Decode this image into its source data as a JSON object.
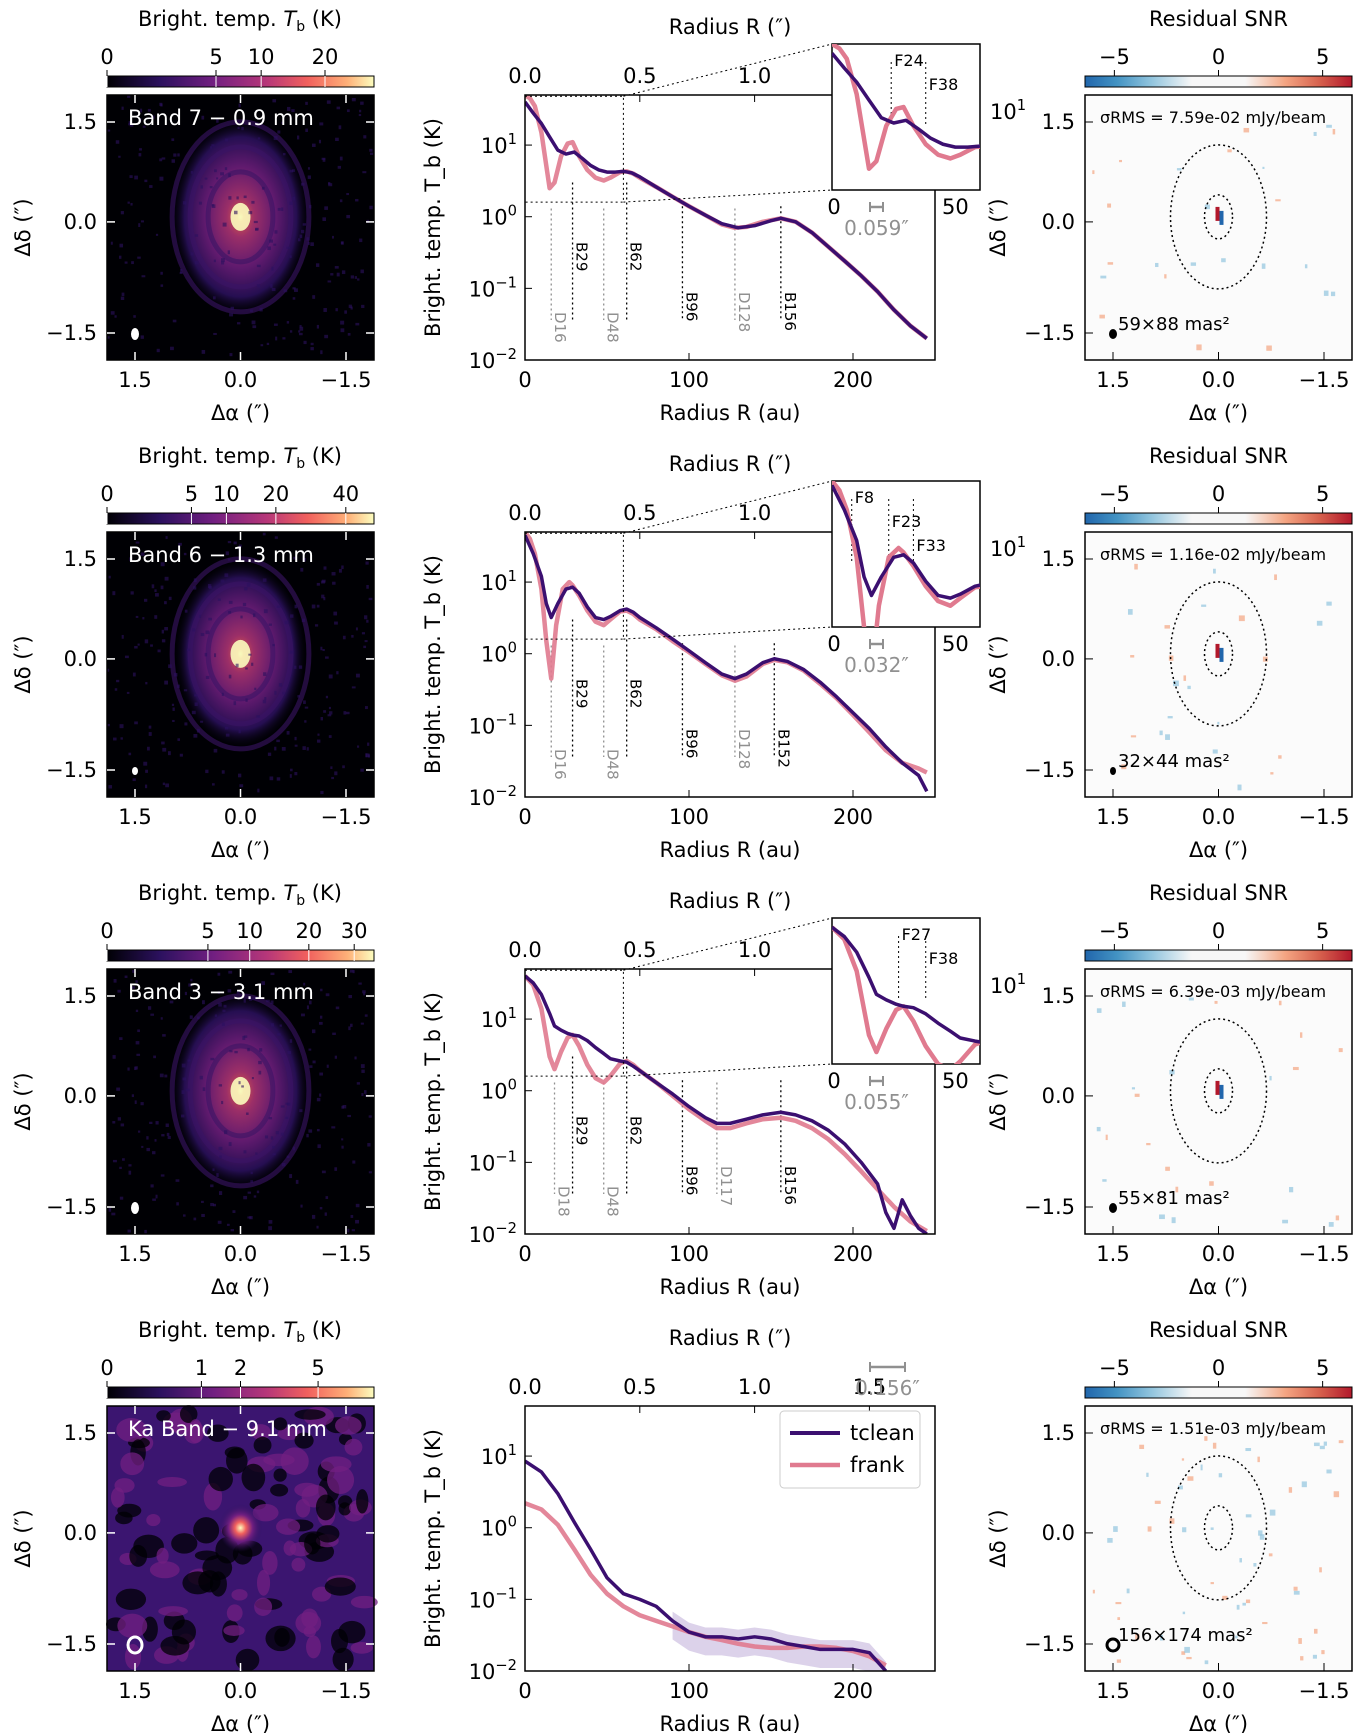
{
  "legend": {
    "tclean": "tclean",
    "frank": "frank"
  },
  "colors": {
    "tclean": "#3b0f70",
    "frank": "#e07a8f",
    "band_fill": "#b9a6d6",
    "gap_line": "#909090"
  },
  "colorbar_labels": {
    "brightness": "Bright. temp. $T_b$ (K)",
    "residual": "Residual SNR",
    "residual_ticks": [
      "−5",
      "0",
      "5"
    ]
  },
  "axes_text": {
    "dalpha": "Δα (″)",
    "ddelta": "Δδ (″)",
    "radius_au": "Radius R (au)",
    "radius_arcsec": "Radius R (″)",
    "tb": "Bright. temp. T_b (K)",
    "offset_ticks": [
      "1.5",
      "0.0",
      "−1.5"
    ],
    "au_ticks": [
      "0",
      "100",
      "200"
    ],
    "arcsec_ticks": [
      "0.0",
      "0.5",
      "1.0",
      "1.5"
    ],
    "log_ticks": [
      "10^-2",
      "10^-1",
      "10^0",
      "10^1"
    ],
    "inset_x_ticks": [
      "0",
      "50"
    ],
    "inset_y_tick": "10^1"
  },
  "panels": [
    {
      "band_label": "Band 7 − 0.9 mm",
      "colorbar_ticks": [
        "0",
        "5",
        "10",
        "20"
      ],
      "colorbar_tick_values": [
        0,
        5,
        10,
        20
      ],
      "colorbar_max": 30,
      "beam_label": "59×88 mas²",
      "sigma_rms": "σRMS = 7.59e-02 mJy/beam",
      "scale_bar": "0.059″",
      "features": [
        {
          "label": "D16",
          "r": 16,
          "type": "gap"
        },
        {
          "label": "B29",
          "r": 29,
          "type": "ring"
        },
        {
          "label": "D48",
          "r": 48,
          "type": "gap"
        },
        {
          "label": "B62",
          "r": 62,
          "type": "ring"
        },
        {
          "label": "B96",
          "r": 96,
          "type": "ring"
        },
        {
          "label": "D128",
          "r": 128,
          "type": "gap"
        },
        {
          "label": "B156",
          "r": 156,
          "type": "ring"
        }
      ],
      "inset_features": [
        {
          "label": "F24",
          "r": 24
        },
        {
          "label": "F38",
          "r": 38
        }
      ],
      "inset": true
    },
    {
      "band_label": "Band 6 − 1.3 mm",
      "colorbar_ticks": [
        "0",
        "5",
        "10",
        "20",
        "40"
      ],
      "colorbar_tick_values": [
        0,
        5,
        10,
        20,
        40
      ],
      "colorbar_max": 50,
      "beam_label": "32×44 mas²",
      "sigma_rms": "σRMS = 1.16e-02 mJy/beam",
      "scale_bar": "0.032″",
      "features": [
        {
          "label": "D16",
          "r": 16,
          "type": "gap"
        },
        {
          "label": "B29",
          "r": 29,
          "type": "ring"
        },
        {
          "label": "D48",
          "r": 48,
          "type": "gap"
        },
        {
          "label": "B62",
          "r": 62,
          "type": "ring"
        },
        {
          "label": "B96",
          "r": 96,
          "type": "ring"
        },
        {
          "label": "D128",
          "r": 128,
          "type": "gap"
        },
        {
          "label": "B152",
          "r": 152,
          "type": "ring"
        }
      ],
      "inset_features": [
        {
          "label": "F8",
          "r": 8
        },
        {
          "label": "F23",
          "r": 23
        },
        {
          "label": "F33",
          "r": 33
        }
      ],
      "inset": true
    },
    {
      "band_label": "Band 3 − 3.1 mm",
      "colorbar_ticks": [
        "0",
        "5",
        "10",
        "20",
        "30"
      ],
      "colorbar_tick_values": [
        0,
        5,
        10,
        20,
        30
      ],
      "colorbar_max": 35,
      "beam_label": "55×81 mas²",
      "sigma_rms": "σRMS = 6.39e-03 mJy/beam",
      "scale_bar": "0.055″",
      "features": [
        {
          "label": "D18",
          "r": 18,
          "type": "gap"
        },
        {
          "label": "B29",
          "r": 29,
          "type": "ring"
        },
        {
          "label": "D48",
          "r": 48,
          "type": "gap"
        },
        {
          "label": "B62",
          "r": 62,
          "type": "ring"
        },
        {
          "label": "B96",
          "r": 96,
          "type": "ring"
        },
        {
          "label": "D117",
          "r": 117,
          "type": "gap"
        },
        {
          "label": "B156",
          "r": 156,
          "type": "ring"
        }
      ],
      "inset_features": [
        {
          "label": "F27",
          "r": 27
        },
        {
          "label": "F38",
          "r": 38
        }
      ],
      "inset": true
    },
    {
      "band_label": "Ka Band − 9.1 mm",
      "colorbar_ticks": [
        "0",
        "1",
        "2",
        "5"
      ],
      "colorbar_tick_values": [
        0,
        1,
        2,
        5
      ],
      "colorbar_max": 8,
      "beam_label": "156×174 mas²",
      "sigma_rms": "σRMS = 1.51e-03 mJy/beam",
      "scale_bar": "0.156″",
      "features": [],
      "inset_features": [],
      "inset": false
    }
  ],
  "chart_data": {
    "type": "line",
    "x_axis": "Radius R (au)",
    "x_top_axis": "Radius R (″)",
    "y_axis": "Bright. temp. T_b (K)",
    "xlim": [
      0,
      250
    ],
    "ylim": [
      0.01,
      50
    ],
    "yscale": "log",
    "series_by_panel": [
      {
        "tclean": {
          "r": [
            0,
            5,
            10,
            15,
            20,
            25,
            30,
            35,
            40,
            45,
            50,
            55,
            60,
            65,
            70,
            80,
            90,
            100,
            110,
            120,
            130,
            140,
            150,
            156,
            165,
            175,
            185,
            195,
            205,
            215,
            225,
            235,
            245
          ],
          "tb": [
            40,
            28,
            20,
            13,
            8.5,
            7.5,
            8,
            6.5,
            5.2,
            4.5,
            4.2,
            4.2,
            4.3,
            4.1,
            3.6,
            2.6,
            1.9,
            1.4,
            1.05,
            0.8,
            0.7,
            0.75,
            0.88,
            0.95,
            0.85,
            0.6,
            0.38,
            0.24,
            0.15,
            0.09,
            0.05,
            0.03,
            0.02
          ]
        },
        "frank": {
          "r": [
            0,
            3,
            6,
            10,
            15,
            18,
            22,
            26,
            29,
            33,
            38,
            43,
            48,
            52,
            58,
            62,
            66,
            70,
            80,
            90,
            100,
            110,
            120,
            128,
            135,
            145,
            156,
            165,
            175,
            185,
            195,
            205,
            215,
            225,
            235,
            245
          ],
          "tb": [
            50,
            45,
            35,
            15,
            2.5,
            3,
            7,
            10.5,
            11,
            7,
            4.5,
            3.5,
            3.2,
            3.5,
            4.2,
            4.3,
            4,
            3.5,
            2.6,
            1.9,
            1.4,
            1.05,
            0.78,
            0.7,
            0.72,
            0.85,
            0.95,
            0.85,
            0.6,
            0.38,
            0.24,
            0.15,
            0.09,
            0.05,
            0.03,
            0.02
          ]
        }
      },
      {
        "tclean": {
          "r": [
            0,
            5,
            10,
            13,
            16,
            20,
            25,
            29,
            33,
            38,
            43,
            48,
            52,
            58,
            62,
            66,
            70,
            80,
            90,
            100,
            110,
            120,
            128,
            135,
            145,
            152,
            160,
            170,
            180,
            190,
            200,
            210,
            220,
            230,
            240,
            245
          ],
          "tb": [
            45,
            25,
            12,
            5,
            3.2,
            5,
            8,
            8.5,
            7,
            4.5,
            3.2,
            3,
            3.3,
            4,
            4.2,
            3.8,
            3.2,
            2.3,
            1.6,
            1.1,
            0.75,
            0.52,
            0.45,
            0.52,
            0.75,
            0.85,
            0.78,
            0.6,
            0.4,
            0.25,
            0.15,
            0.09,
            0.05,
            0.03,
            0.02,
            0.012
          ]
        },
        "frank": {
          "r": [
            0,
            3,
            6,
            10,
            13,
            16,
            19,
            23,
            27,
            29,
            33,
            38,
            43,
            48,
            52,
            58,
            62,
            66,
            70,
            80,
            90,
            100,
            110,
            120,
            128,
            135,
            145,
            152,
            160,
            170,
            180,
            190,
            200,
            210,
            220,
            230,
            240,
            245
          ],
          "tb": [
            50,
            40,
            25,
            8,
            1.5,
            0.45,
            2.5,
            8,
            10,
            9,
            6.5,
            4,
            2.8,
            2.5,
            3,
            3.9,
            4,
            3.6,
            3,
            2.2,
            1.5,
            1.05,
            0.72,
            0.5,
            0.42,
            0.48,
            0.72,
            0.82,
            0.76,
            0.58,
            0.38,
            0.24,
            0.14,
            0.08,
            0.045,
            0.03,
            0.025,
            0.022
          ]
        }
      },
      {
        "tclean": {
          "r": [
            0,
            5,
            10,
            15,
            18,
            22,
            26,
            29,
            33,
            38,
            43,
            48,
            52,
            58,
            62,
            66,
            70,
            80,
            90,
            100,
            110,
            117,
            125,
            135,
            145,
            156,
            165,
            175,
            185,
            195,
            205,
            215,
            220,
            225,
            230,
            235,
            240,
            245
          ],
          "tb": [
            40,
            32,
            22,
            12,
            8,
            7,
            6.3,
            6,
            5.8,
            5,
            4,
            3.3,
            2.8,
            2.6,
            2.5,
            2.2,
            1.9,
            1.3,
            0.9,
            0.6,
            0.42,
            0.35,
            0.35,
            0.4,
            0.46,
            0.5,
            0.46,
            0.38,
            0.28,
            0.18,
            0.1,
            0.05,
            0.02,
            0.012,
            0.03,
            0.018,
            0.012,
            0.01
          ]
        },
        "frank": {
          "r": [
            0,
            5,
            10,
            15,
            18,
            22,
            26,
            29,
            33,
            38,
            43,
            48,
            52,
            58,
            62,
            66,
            70,
            80,
            90,
            100,
            110,
            117,
            125,
            135,
            145,
            156,
            165,
            175,
            185,
            195,
            205,
            215,
            225,
            235,
            245
          ],
          "tb": [
            40,
            30,
            14,
            3,
            2,
            3.5,
            5.5,
            6,
            4.2,
            2.3,
            1.5,
            1.3,
            1.6,
            2.4,
            2.6,
            2.3,
            1.9,
            1.3,
            0.85,
            0.55,
            0.38,
            0.3,
            0.3,
            0.35,
            0.4,
            0.42,
            0.38,
            0.3,
            0.21,
            0.13,
            0.075,
            0.042,
            0.024,
            0.015,
            0.011
          ]
        }
      },
      {
        "tclean": {
          "r": [
            0,
            10,
            20,
            30,
            40,
            50,
            60,
            70,
            80,
            90,
            100,
            110,
            120,
            130,
            140,
            150,
            160,
            170,
            180,
            190,
            200,
            210,
            220
          ],
          "tb": [
            8.5,
            6,
            3,
            1.2,
            0.5,
            0.2,
            0.12,
            0.1,
            0.08,
            0.05,
            0.035,
            0.03,
            0.03,
            0.028,
            0.03,
            0.028,
            0.024,
            0.022,
            0.02,
            0.02,
            0.02,
            0.018,
            0.01
          ]
        },
        "frank": {
          "r": [
            0,
            10,
            20,
            30,
            40,
            50,
            60,
            70,
            80,
            90,
            100,
            110,
            120,
            130,
            140,
            150,
            160,
            170,
            180,
            190,
            200,
            210,
            220
          ],
          "tb": [
            2.2,
            1.8,
            1.1,
            0.5,
            0.22,
            0.12,
            0.08,
            0.06,
            0.05,
            0.042,
            0.035,
            0.03,
            0.027,
            0.024,
            0.022,
            0.021,
            0.021,
            0.022,
            0.022,
            0.021,
            0.019,
            0.016,
            0.012
          ]
        }
      }
    ]
  }
}
